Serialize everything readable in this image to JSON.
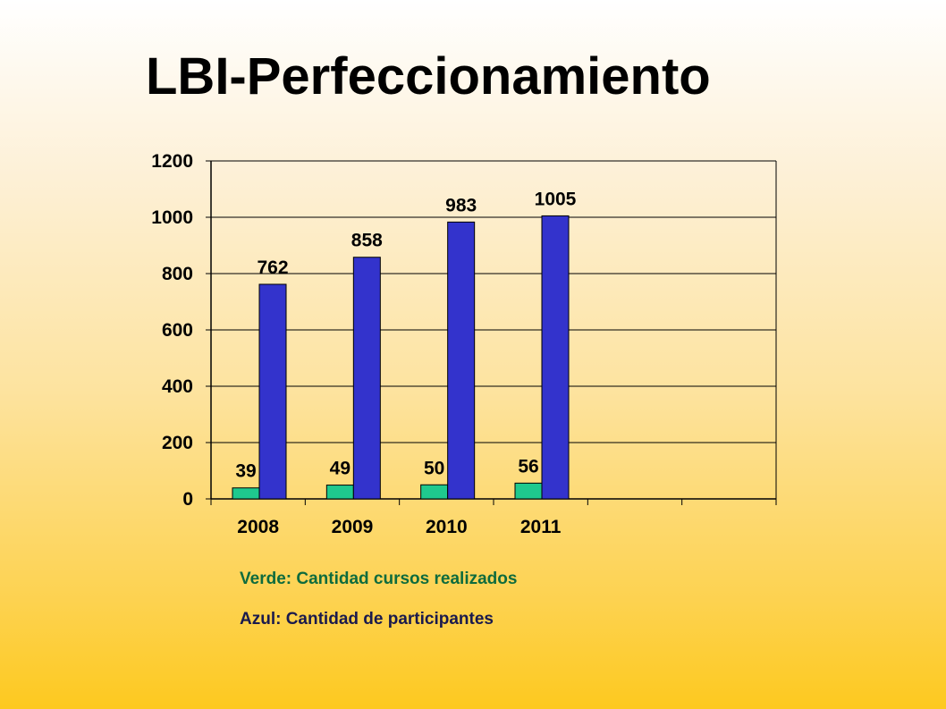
{
  "page": {
    "title": "LBI-Perfeccionamiento",
    "legend": {
      "green_text": "Verde: Cantidad cursos realizados",
      "blue_text": "Azul: Cantidad de participantes"
    }
  },
  "colors": {
    "green": "#1fc98e",
    "blue": "#3333cc",
    "axis": "#000000",
    "grid": "#000000"
  },
  "chart_data": {
    "type": "bar",
    "title": "LBI-Perfeccionamiento",
    "xlabel": "",
    "ylabel": "",
    "categories": [
      "2008",
      "2009",
      "2010",
      "2011",
      "",
      ""
    ],
    "series": [
      {
        "name": "Verde: Cantidad cursos realizados",
        "color": "#1fc98e",
        "values": [
          39,
          49,
          50,
          56,
          null,
          null
        ]
      },
      {
        "name": "Azul: Cantidad de participantes",
        "color": "#3333cc",
        "values": [
          762,
          858,
          983,
          1005,
          null,
          null
        ]
      }
    ],
    "ylim": [
      0,
      1200
    ],
    "yticks": [
      0,
      200,
      400,
      600,
      800,
      1000,
      1200
    ],
    "grid": true,
    "data_labels": true
  }
}
